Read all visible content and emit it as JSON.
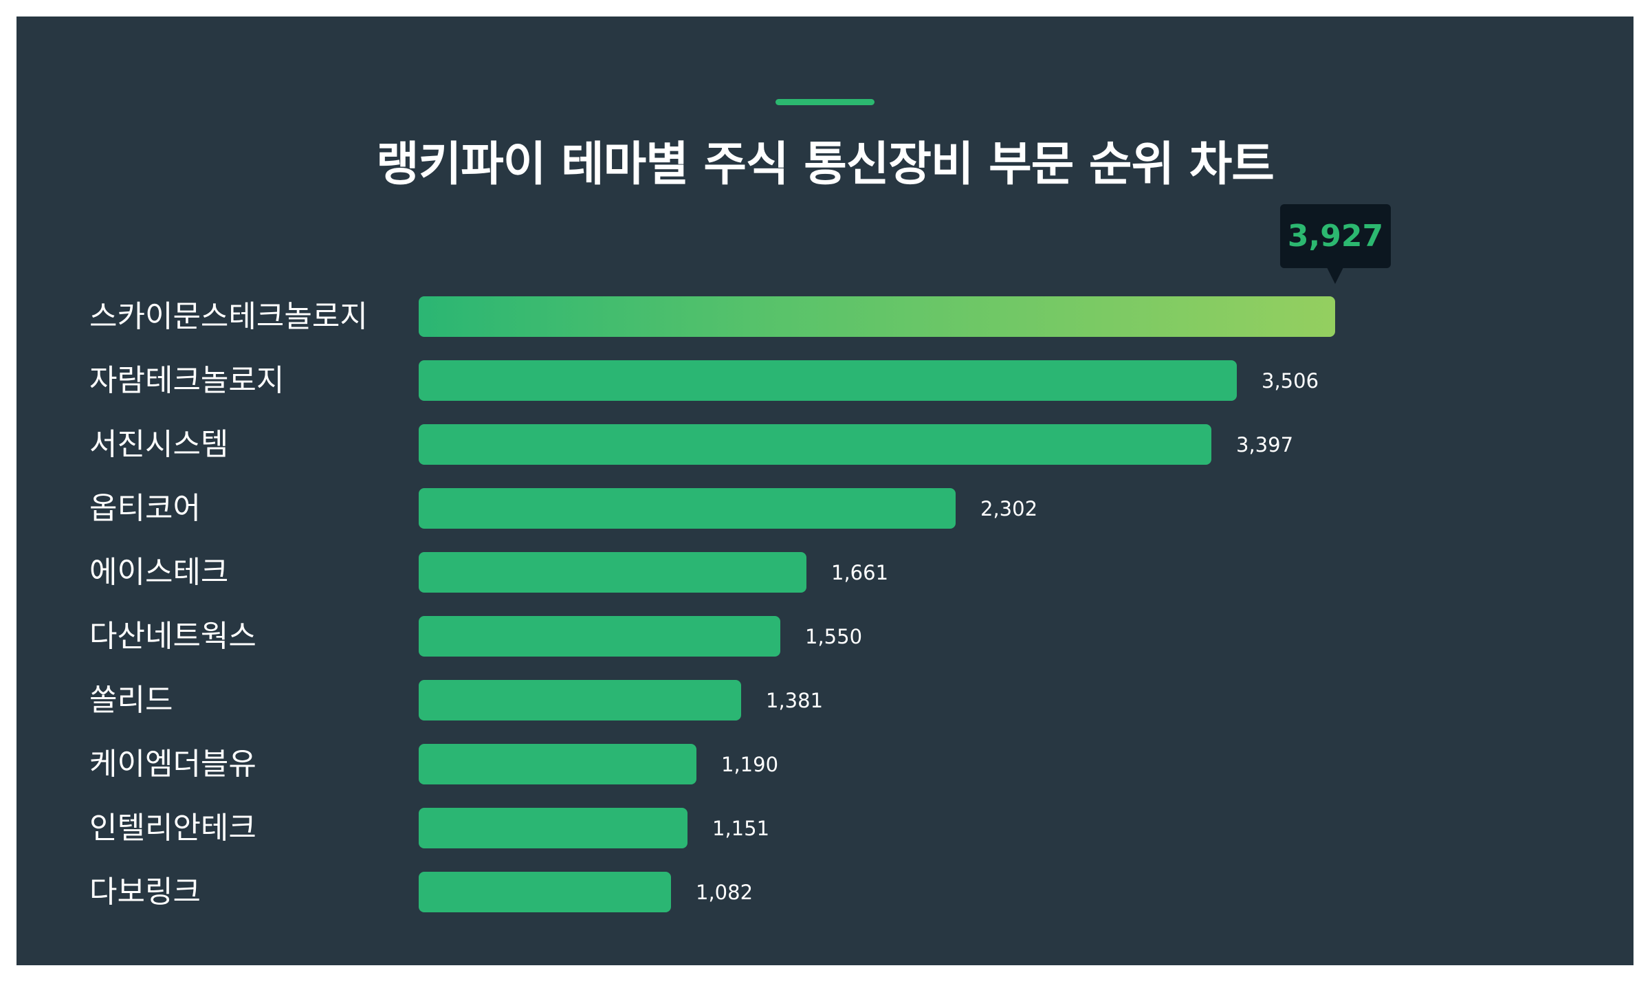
{
  "title": "랭키파이 테마별 주식 통신장비 부문 순위 차트",
  "colors": {
    "background": "#283742",
    "bar": "#2bb673",
    "bar_top_gradient_start": "#2bb673",
    "bar_top_gradient_end": "#94cf60",
    "accent": "#2cb870",
    "tooltip_bg": "#0c1720",
    "text": "#ffffff"
  },
  "tooltip": {
    "value_label": "3,927"
  },
  "rows": [
    {
      "name": "스카이문스테크놀로지",
      "value": 3927,
      "value_label": "3,927"
    },
    {
      "name": "자람테크놀로지",
      "value": 3506,
      "value_label": "3,506"
    },
    {
      "name": "서진시스템",
      "value": 3397,
      "value_label": "3,397"
    },
    {
      "name": "옵티코어",
      "value": 2302,
      "value_label": "2,302"
    },
    {
      "name": "에이스테크",
      "value": 1661,
      "value_label": "1,661"
    },
    {
      "name": "다산네트웍스",
      "value": 1550,
      "value_label": "1,550"
    },
    {
      "name": "쏠리드",
      "value": 1381,
      "value_label": "1,381"
    },
    {
      "name": "케이엠더블유",
      "value": 1190,
      "value_label": "1,190"
    },
    {
      "name": "인텔리안테크",
      "value": 1151,
      "value_label": "1,151"
    },
    {
      "name": "다보링크",
      "value": 1082,
      "value_label": "1,082"
    }
  ],
  "chart_data": {
    "type": "bar",
    "orientation": "horizontal",
    "title": "랭키파이 테마별 주식 통신장비 부문 순위 차트",
    "categories": [
      "스카이문스테크놀로지",
      "자람테크놀로지",
      "서진시스템",
      "옵티코어",
      "에이스테크",
      "다산네트웍스",
      "쏠리드",
      "케이엠더블유",
      "인텔리안테크",
      "다보링크"
    ],
    "values": [
      3927,
      3506,
      3397,
      2302,
      1661,
      1550,
      1381,
      1190,
      1151,
      1082
    ],
    "xlabel": "",
    "ylabel": "",
    "grid": false,
    "legend": "none",
    "annotations": [
      {
        "category": "스카이문스테크놀로지",
        "text": "3,927",
        "style": "tooltip"
      }
    ]
  }
}
